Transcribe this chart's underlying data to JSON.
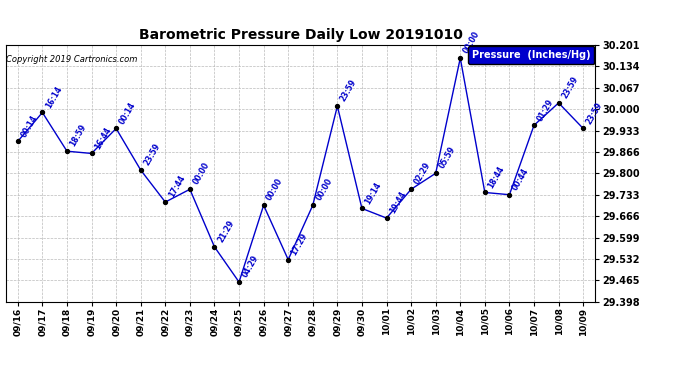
{
  "title": "Barometric Pressure Daily Low 20191010",
  "copyright": "Copyright 2019 Cartronics.com",
  "legend_label": "Pressure  (Inches/Hg)",
  "x_labels": [
    "09/16",
    "09/17",
    "09/18",
    "09/19",
    "09/20",
    "09/21",
    "09/22",
    "09/23",
    "09/24",
    "09/25",
    "09/26",
    "09/27",
    "09/28",
    "09/29",
    "09/30",
    "10/01",
    "10/02",
    "10/03",
    "10/04",
    "10/05",
    "10/06",
    "10/07",
    "10/08",
    "10/09"
  ],
  "y_values": [
    29.9,
    29.99,
    29.869,
    29.862,
    29.94,
    29.81,
    29.71,
    29.75,
    29.57,
    29.46,
    29.7,
    29.53,
    29.7,
    30.01,
    29.69,
    29.66,
    29.75,
    29.8,
    30.16,
    29.74,
    29.733,
    29.95,
    30.02,
    29.94
  ],
  "point_labels": [
    "00:14",
    "16:14",
    "18:59",
    "16:44",
    "00:14",
    "23:59",
    "17:44",
    "00:00",
    "21:29",
    "04:29",
    "00:00",
    "17:29",
    "00:00",
    "23:59",
    "19:14",
    "19:44",
    "02:29",
    "05:59",
    "00:00",
    "18:44",
    "00:44",
    "01:29",
    "23:59",
    "23:59"
  ],
  "ylim_min": 29.398,
  "ylim_max": 30.201,
  "y_ticks": [
    29.398,
    29.465,
    29.532,
    29.599,
    29.666,
    29.733,
    29.8,
    29.866,
    29.933,
    30.0,
    30.067,
    30.134,
    30.201
  ],
  "line_color": "#0000cc",
  "marker_color": "#000000",
  "bg_color": "#ffffff",
  "grid_color": "#bbbbbb",
  "title_color": "#000000",
  "legend_bg": "#0000cc",
  "legend_fg": "#ffffff",
  "copyright_color": "#000000",
  "label_offset_x": [
    2,
    2,
    2,
    2,
    2,
    2,
    2,
    2,
    2,
    2,
    2,
    2,
    2,
    2,
    2,
    2,
    2,
    2,
    2,
    2,
    2,
    2,
    2,
    2
  ],
  "label_offset_y": [
    2,
    2,
    2,
    2,
    2,
    2,
    2,
    2,
    2,
    2,
    2,
    2,
    2,
    2,
    2,
    2,
    2,
    2,
    2,
    2,
    2,
    2,
    2,
    2
  ]
}
